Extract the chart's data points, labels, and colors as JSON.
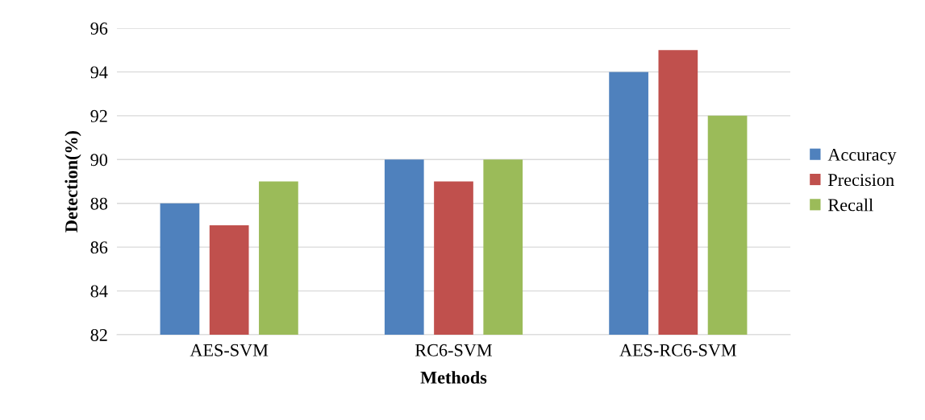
{
  "chart_data": {
    "type": "bar",
    "xlabel": "Methods",
    "ylabel": "Detection(%)",
    "categories": [
      "AES-SVM",
      "RC6-SVM",
      "AES-RC6-SVM"
    ],
    "series": [
      {
        "name": "Accuracy",
        "color": "#4f81bd",
        "values": [
          88,
          90,
          94
        ]
      },
      {
        "name": "Precision",
        "color": "#c0504d",
        "values": [
          87,
          89,
          95
        ]
      },
      {
        "name": "Recall",
        "color": "#9bbb59",
        "values": [
          89,
          90,
          92
        ]
      }
    ],
    "ylim": [
      82,
      96
    ],
    "yticks": [
      82,
      84,
      86,
      88,
      90,
      92,
      94,
      96
    ],
    "grid": "y",
    "legend": "right"
  }
}
